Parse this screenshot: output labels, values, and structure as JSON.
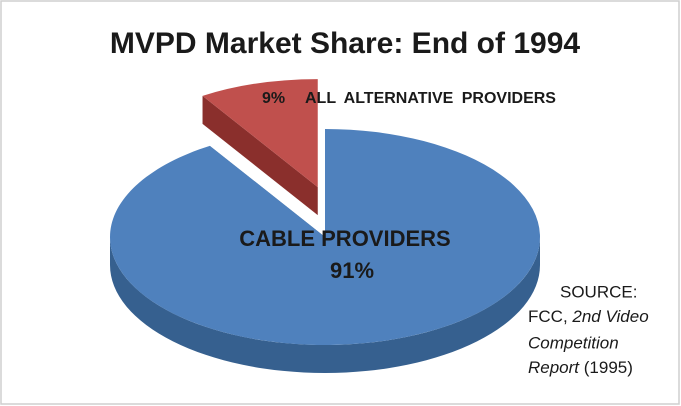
{
  "chart_data": {
    "type": "pie3d",
    "title": "MVPD Market Share: End of 1994",
    "categories": [
      "CABLE PROVIDERS",
      "ALL ALTERNATIVE PROVIDERS"
    ],
    "values": [
      91,
      9
    ],
    "value_labels": [
      "91%",
      "9%"
    ],
    "colors": [
      "#4f81bd",
      "#c0504d"
    ],
    "side_colors": [
      "#36608f",
      "#8a2f2c"
    ],
    "exploded": [
      false,
      true
    ],
    "source": [
      "SOURCE:",
      "FCC, ",
      "2nd Video",
      "Competition",
      "Report",
      " (1995)"
    ]
  }
}
